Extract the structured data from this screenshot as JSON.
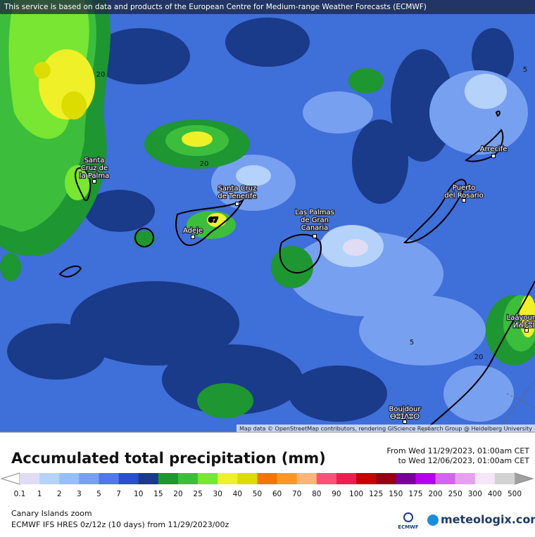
{
  "banner": "This service is based on data and products of the European Centre for Medium-range Weather Forecasts (ECMWF)",
  "attribution": "Map data © OpenStreetMap contributors, rendering GIScience Research Group @ Heidelberg University",
  "cities": [
    {
      "lines": [
        "Santa",
        "Cruz de",
        "la Palma"
      ]
    },
    {
      "lines": [
        "Santa Cruz",
        "de Tenerife"
      ]
    },
    {
      "lines": [
        "Adeje"
      ]
    },
    {
      "lines": [
        "Las Palmas",
        "de Gran",
        "Canaria"
      ]
    },
    {
      "lines": [
        "Arrecife"
      ]
    },
    {
      "lines": [
        "Puerto",
        "del Rosario"
      ]
    },
    {
      "lines": [
        "Laâyoune",
        "ⵍⵄⵢⵓⵏ"
      ]
    },
    {
      "lines": [
        "Boujdour",
        "ⴱⵓⵊⴷⵓⵔ"
      ]
    }
  ],
  "contour_labels": [
    "20",
    "20",
    "5",
    "5",
    "20",
    "67"
  ],
  "legend": {
    "title": "Accumulated total precipitation (mm)",
    "period": [
      "From Wed 11/29/2023, 01:00am CET",
      "to Wed 12/06/2023, 01:00am CET"
    ],
    "labels": [
      "0.1",
      "1",
      "2",
      "3",
      "5",
      "7",
      "10",
      "15",
      "20",
      "25",
      "30",
      "40",
      "50",
      "60",
      "70",
      "80",
      "90",
      "100",
      "125",
      "150",
      "175",
      "200",
      "250",
      "300",
      "400",
      "500"
    ],
    "colors": [
      "#e0dcf5",
      "#b4d2fa",
      "#96befa",
      "#78a0f0",
      "#5078e6",
      "#2850c8",
      "#1a3a8a",
      "#1e9632",
      "#3cbe3c",
      "#78e632",
      "#f0f028",
      "#dcdc00",
      "#f07800",
      "#ff9628",
      "#ffb478",
      "#ff5078",
      "#f01e50",
      "#c80000",
      "#960014",
      "#780096",
      "#b400f0",
      "#d264f0",
      "#e6a0f0",
      "#f5e6fa",
      "#d2d2d2"
    ]
  },
  "footer": {
    "region": "Canary Islands zoom",
    "model": "ECMWF IFS HRES 0z/12z (10 days) from 11/29/2023/00z",
    "ecmwf": "ECMWF",
    "brand": "meteologix.com"
  }
}
